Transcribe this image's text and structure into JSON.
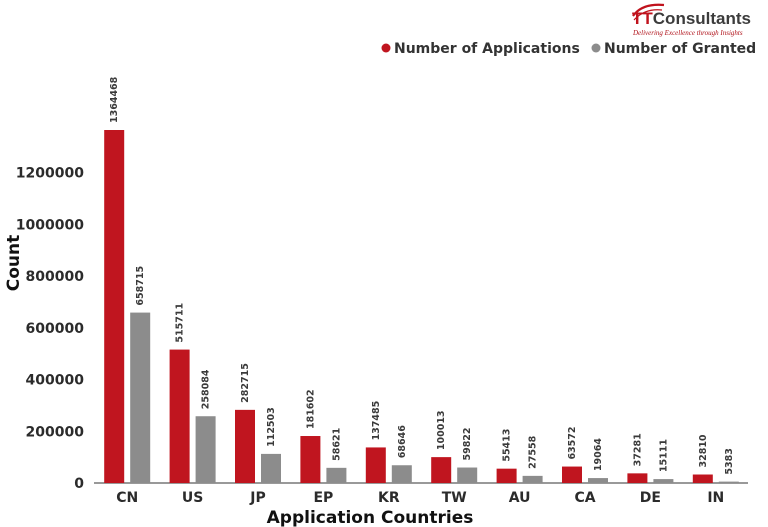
{
  "logo": {
    "mark_text": "TT",
    "name_text": "Consultants",
    "tagline": "Delivering Excellence through Insights",
    "brand_color": "#c0121c",
    "text_color": "#3c3c3c"
  },
  "colors": {
    "applications": "#c0151f",
    "granted": "#8c8c8c",
    "axis": "#333333"
  },
  "chart_data": {
    "type": "bar",
    "title": "",
    "xlabel": "Application Countries",
    "ylabel": "Count",
    "categories": [
      "CN",
      "US",
      "JP",
      "EP",
      "KR",
      "TW",
      "AU",
      "CA",
      "DE",
      "IN"
    ],
    "series": [
      {
        "name": "Number of Applications",
        "values": [
          1364468,
          515711,
          282715,
          181602,
          137485,
          100013,
          55413,
          63572,
          37281,
          32810
        ]
      },
      {
        "name": "Number of Granted",
        "values": [
          658715,
          258084,
          112503,
          58621,
          68646,
          59822,
          27558,
          19064,
          15111,
          5383
        ]
      }
    ],
    "yticks": [
      "0",
      "200000",
      "400000",
      "600000",
      "800000",
      "1000000",
      "1200000"
    ],
    "ylim": [
      0,
      1364468
    ],
    "grid": false,
    "legend_position": "top-right"
  }
}
